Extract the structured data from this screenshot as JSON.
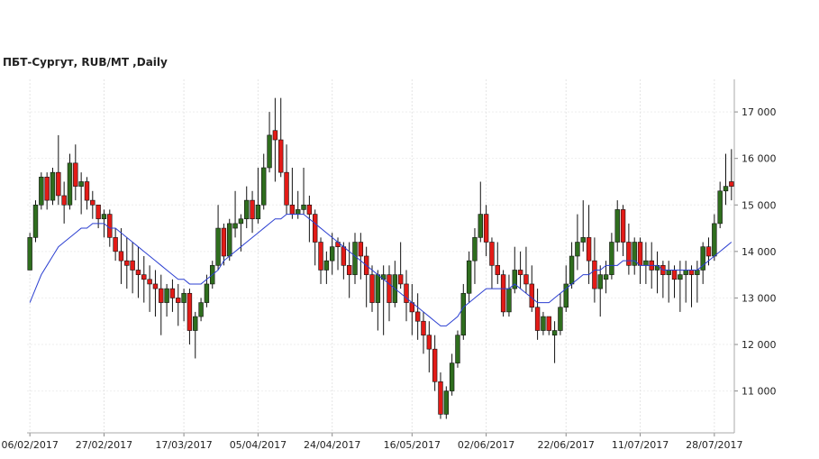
{
  "chart_data": {
    "type": "candlestick",
    "title": "ПБТ-Сургут,  RUB/MT ,Daily",
    "up_color": "#2f6e1e",
    "down_color": "#e31b17",
    "ma_color": "#2b3fd1",
    "grid": true,
    "ylim": [
      10100,
      17700
    ],
    "yticks": [
      {
        "value": 11000,
        "label": "11 000"
      },
      {
        "value": 12000,
        "label": "12 000"
      },
      {
        "value": 13000,
        "label": "13 000"
      },
      {
        "value": 14000,
        "label": "14 000"
      },
      {
        "value": 15000,
        "label": "15 000"
      },
      {
        "value": 16000,
        "label": "16 000"
      },
      {
        "value": 17000,
        "label": "17 000"
      }
    ],
    "xticks": [
      {
        "value": 0,
        "label": "06/02/2017"
      },
      {
        "value": 13,
        "label": "27/02/2017"
      },
      {
        "value": 27,
        "label": "17/03/2017"
      },
      {
        "value": 40,
        "label": "05/04/2017"
      },
      {
        "value": 53,
        "label": "24/04/2017"
      },
      {
        "value": 67,
        "label": "16/05/2017"
      },
      {
        "value": 80,
        "label": "02/06/2017"
      },
      {
        "value": 94,
        "label": "22/06/2017"
      },
      {
        "value": 107,
        "label": "11/07/2017"
      },
      {
        "value": 120,
        "label": "28/07/2017"
      }
    ],
    "ohlc": [
      [
        13600,
        14400,
        13600,
        14300
      ],
      [
        14300,
        15100,
        14200,
        15000
      ],
      [
        15000,
        15700,
        14900,
        15600
      ],
      [
        15600,
        15700,
        14900,
        15100
      ],
      [
        15100,
        15800,
        15000,
        15700
      ],
      [
        15700,
        16500,
        15000,
        15200
      ],
      [
        15200,
        15500,
        14600,
        15000
      ],
      [
        15000,
        16100,
        14900,
        15900
      ],
      [
        15900,
        16300,
        15100,
        15400
      ],
      [
        15400,
        15700,
        14800,
        15500
      ],
      [
        15500,
        15600,
        14900,
        15100
      ],
      [
        15100,
        15300,
        14700,
        15000
      ],
      [
        15000,
        15000,
        14500,
        14700
      ],
      [
        14700,
        14900,
        14300,
        14800
      ],
      [
        14800,
        14900,
        14100,
        14300
      ],
      [
        14300,
        14500,
        13800,
        14000
      ],
      [
        14000,
        14500,
        13300,
        13800
      ],
      [
        13800,
        14300,
        13200,
        13700
      ],
      [
        13800,
        14200,
        13100,
        13600
      ],
      [
        13600,
        14100,
        13000,
        13500
      ],
      [
        13500,
        13900,
        12900,
        13400
      ],
      [
        13400,
        13700,
        12700,
        13300
      ],
      [
        13300,
        13600,
        12600,
        13200
      ],
      [
        13200,
        13500,
        12200,
        12900
      ],
      [
        12900,
        13300,
        12600,
        13200
      ],
      [
        13200,
        13400,
        12700,
        13000
      ],
      [
        13000,
        13300,
        12400,
        12900
      ],
      [
        12900,
        13200,
        12500,
        13100
      ],
      [
        13100,
        13200,
        12000,
        12300
      ],
      [
        12300,
        12700,
        11700,
        12600
      ],
      [
        12600,
        13000,
        12500,
        12900
      ],
      [
        12900,
        13500,
        12800,
        13300
      ],
      [
        13300,
        13800,
        13200,
        13700
      ],
      [
        13700,
        15000,
        13600,
        14500
      ],
      [
        14500,
        14600,
        13700,
        13900
      ],
      [
        13900,
        14700,
        13800,
        14600
      ],
      [
        14500,
        15300,
        14300,
        14600
      ],
      [
        14600,
        14800,
        14000,
        14700
      ],
      [
        14700,
        15400,
        14500,
        15100
      ],
      [
        15100,
        15300,
        14400,
        14700
      ],
      [
        14700,
        15800,
        14600,
        15000
      ],
      [
        15000,
        16100,
        14900,
        15800
      ],
      [
        15800,
        17000,
        15700,
        16500
      ],
      [
        16600,
        17300,
        15500,
        16400
      ],
      [
        16400,
        17300,
        15600,
        15700
      ],
      [
        15700,
        16300,
        14800,
        15000
      ],
      [
        15000,
        15800,
        14700,
        14800
      ],
      [
        14800,
        15300,
        14700,
        14900
      ],
      [
        14900,
        15800,
        14800,
        15000
      ],
      [
        15000,
        15200,
        14200,
        14800
      ],
      [
        14800,
        14900,
        13700,
        14200
      ],
      [
        14200,
        14300,
        13300,
        13600
      ],
      [
        13600,
        14000,
        13300,
        13800
      ],
      [
        13800,
        14400,
        13500,
        14100
      ],
      [
        14200,
        14300,
        13600,
        14100
      ],
      [
        14100,
        14200,
        13400,
        13700
      ],
      [
        13700,
        14200,
        13000,
        13500
      ],
      [
        13500,
        14400,
        13300,
        14200
      ],
      [
        14200,
        14400,
        13400,
        13900
      ],
      [
        13900,
        14100,
        12800,
        13500
      ],
      [
        13500,
        13700,
        12700,
        12900
      ],
      [
        12900,
        13600,
        12300,
        13500
      ],
      [
        13400,
        13700,
        12200,
        13500
      ],
      [
        13500,
        13700,
        12500,
        12900
      ],
      [
        12900,
        13800,
        12800,
        13500
      ],
      [
        13500,
        14200,
        13200,
        13300
      ],
      [
        13300,
        13600,
        12500,
        12900
      ],
      [
        12900,
        13300,
        12200,
        12700
      ],
      [
        12700,
        13100,
        12100,
        12500
      ],
      [
        12500,
        12700,
        11800,
        12200
      ],
      [
        12200,
        12500,
        11400,
        11900
      ],
      [
        11900,
        12200,
        11000,
        11200
      ],
      [
        11200,
        11400,
        10400,
        10500
      ],
      [
        10500,
        11100,
        10400,
        11000
      ],
      [
        11000,
        11800,
        10900,
        11600
      ],
      [
        11600,
        12300,
        11500,
        12200
      ],
      [
        12200,
        13300,
        12100,
        13100
      ],
      [
        13100,
        14000,
        12900,
        13800
      ],
      [
        13800,
        14500,
        13300,
        14300
      ],
      [
        14300,
        15500,
        14200,
        14800
      ],
      [
        14800,
        15000,
        13900,
        14200
      ],
      [
        14200,
        14300,
        13200,
        13700
      ],
      [
        13700,
        14200,
        13300,
        13500
      ],
      [
        13500,
        13600,
        12600,
        12700
      ],
      [
        12700,
        13500,
        12600,
        13200
      ],
      [
        13200,
        14100,
        13100,
        13600
      ],
      [
        13600,
        14000,
        13200,
        13500
      ],
      [
        13500,
        14100,
        13100,
        13300
      ],
      [
        13300,
        13700,
        12700,
        12800
      ],
      [
        12800,
        13200,
        12100,
        12300
      ],
      [
        12300,
        12700,
        12200,
        12600
      ],
      [
        12600,
        12600,
        12200,
        12300
      ],
      [
        12200,
        12500,
        11600,
        12300
      ],
      [
        12300,
        13100,
        12200,
        12800
      ],
      [
        12800,
        13700,
        12700,
        13300
      ],
      [
        13300,
        14200,
        13200,
        13900
      ],
      [
        13900,
        14800,
        13600,
        14200
      ],
      [
        14200,
        15100,
        14000,
        14300
      ],
      [
        14300,
        15000,
        13300,
        13800
      ],
      [
        13800,
        14300,
        12900,
        13200
      ],
      [
        13200,
        13700,
        12600,
        13500
      ],
      [
        13400,
        13800,
        13100,
        13500
      ],
      [
        13500,
        14400,
        13400,
        14200
      ],
      [
        14200,
        15100,
        14000,
        14900
      ],
      [
        14900,
        15000,
        13900,
        14200
      ],
      [
        14200,
        14600,
        13500,
        13700
      ],
      [
        13700,
        14300,
        13500,
        14200
      ],
      [
        14200,
        14300,
        13300,
        13700
      ],
      [
        13700,
        14200,
        13300,
        13800
      ],
      [
        13800,
        14200,
        13200,
        13600
      ],
      [
        13600,
        14000,
        13100,
        13700
      ],
      [
        13700,
        13800,
        13000,
        13500
      ],
      [
        13500,
        13800,
        12900,
        13600
      ],
      [
        13600,
        13700,
        13000,
        13400
      ],
      [
        13400,
        13800,
        12700,
        13500
      ],
      [
        13500,
        13800,
        12900,
        13600
      ],
      [
        13600,
        13700,
        12800,
        13500
      ],
      [
        13500,
        13800,
        12900,
        13600
      ],
      [
        13600,
        14200,
        13300,
        14100
      ],
      [
        14100,
        14300,
        13700,
        13900
      ],
      [
        13900,
        14800,
        13800,
        14600
      ],
      [
        14600,
        15500,
        14500,
        15300
      ],
      [
        15300,
        16100,
        15000,
        15400
      ],
      [
        15500,
        16200,
        15100,
        15400
      ]
    ],
    "ma": [
      12900,
      13200,
      13500,
      13700,
      13900,
      14100,
      14200,
      14300,
      14400,
      14500,
      14500,
      14600,
      14600,
      14600,
      14500,
      14500,
      14400,
      14300,
      14200,
      14100,
      14000,
      13900,
      13800,
      13700,
      13600,
      13500,
      13400,
      13400,
      13300,
      13300,
      13300,
      13400,
      13500,
      13600,
      13800,
      13900,
      14000,
      14100,
      14200,
      14300,
      14400,
      14500,
      14600,
      14700,
      14700,
      14800,
      14800,
      14800,
      14800,
      14700,
      14600,
      14500,
      14400,
      14300,
      14200,
      14100,
      14000,
      13900,
      13800,
      13700,
      13600,
      13500,
      13400,
      13300,
      13200,
      13100,
      13000,
      12900,
      12800,
      12700,
      12600,
      12500,
      12400,
      12400,
      12500,
      12600,
      12800,
      12900,
      13000,
      13100,
      13200,
      13200,
      13200,
      13200,
      13200,
      13300,
      13200,
      13100,
      13000,
      12900,
      12900,
      12900,
      13000,
      13100,
      13200,
      13300,
      13400,
      13500,
      13500,
      13600,
      13600,
      13700,
      13700,
      13700,
      13800,
      13800,
      13800,
      13700,
      13700,
      13700,
      13700,
      13600,
      13600,
      13600,
      13600,
      13600,
      13600,
      13600,
      13700,
      13800,
      13900,
      14000,
      14100,
      14200
    ]
  }
}
